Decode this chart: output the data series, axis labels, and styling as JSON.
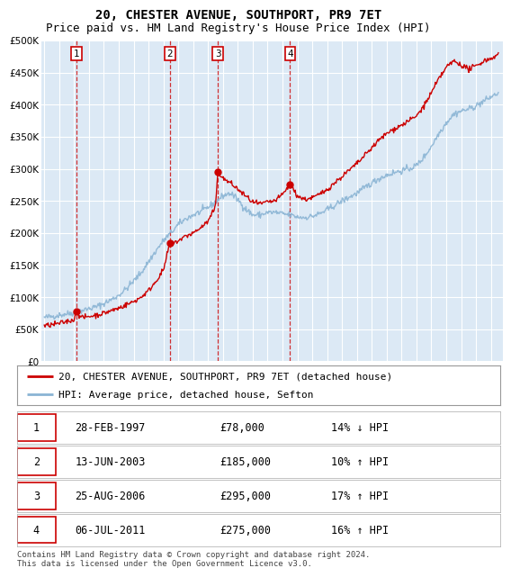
{
  "title": "20, CHESTER AVENUE, SOUTHPORT, PR9 7ET",
  "subtitle": "Price paid vs. HM Land Registry's House Price Index (HPI)",
  "ylabel_ticks": [
    "£0",
    "£50K",
    "£100K",
    "£150K",
    "£200K",
    "£250K",
    "£300K",
    "£350K",
    "£400K",
    "£450K",
    "£500K"
  ],
  "ytick_values": [
    0,
    50000,
    100000,
    150000,
    200000,
    250000,
    300000,
    350000,
    400000,
    450000,
    500000
  ],
  "ylim": [
    0,
    500000
  ],
  "xlim_start": 1994.8,
  "xlim_end": 2025.8,
  "plot_bg_color": "#dce9f5",
  "fig_bg_color": "#ffffff",
  "grid_color": "#ffffff",
  "sale_color": "#cc0000",
  "hpi_color": "#8ab4d4",
  "sale_dates": [
    1997.16,
    2003.45,
    2006.65,
    2011.51
  ],
  "sale_prices": [
    78000,
    185000,
    295000,
    275000
  ],
  "sale_labels": [
    "1",
    "2",
    "3",
    "4"
  ],
  "legend_sale_label": "20, CHESTER AVENUE, SOUTHPORT, PR9 7ET (detached house)",
  "legend_hpi_label": "HPI: Average price, detached house, Sefton",
  "table_rows": [
    [
      "1",
      "28-FEB-1997",
      "£78,000",
      "14% ↓ HPI"
    ],
    [
      "2",
      "13-JUN-2003",
      "£185,000",
      "10% ↑ HPI"
    ],
    [
      "3",
      "25-AUG-2006",
      "£295,000",
      "17% ↑ HPI"
    ],
    [
      "4",
      "06-JUL-2011",
      "£275,000",
      "16% ↑ HPI"
    ]
  ],
  "footnote": "Contains HM Land Registry data © Crown copyright and database right 2024.\nThis data is licensed under the Open Government Licence v3.0.",
  "title_fontsize": 10,
  "subtitle_fontsize": 9,
  "tick_fontsize": 7.5,
  "legend_fontsize": 8,
  "table_fontsize": 8.5,
  "footnote_fontsize": 6.5,
  "hpi_points": [
    [
      1995.0,
      68000
    ],
    [
      1995.5,
      70000
    ],
    [
      1996.0,
      72000
    ],
    [
      1996.5,
      74000
    ],
    [
      1997.0,
      76000
    ],
    [
      1997.5,
      79000
    ],
    [
      1998.0,
      82000
    ],
    [
      1998.5,
      85000
    ],
    [
      1999.0,
      90000
    ],
    [
      1999.5,
      96000
    ],
    [
      2000.0,
      103000
    ],
    [
      2000.5,
      113000
    ],
    [
      2001.0,
      125000
    ],
    [
      2001.5,
      138000
    ],
    [
      2002.0,
      155000
    ],
    [
      2002.5,
      172000
    ],
    [
      2003.0,
      188000
    ],
    [
      2003.5,
      200000
    ],
    [
      2004.0,
      213000
    ],
    [
      2004.5,
      222000
    ],
    [
      2005.0,
      228000
    ],
    [
      2005.5,
      233000
    ],
    [
      2006.0,
      240000
    ],
    [
      2006.5,
      248000
    ],
    [
      2007.0,
      258000
    ],
    [
      2007.5,
      262000
    ],
    [
      2008.0,
      252000
    ],
    [
      2008.5,
      238000
    ],
    [
      2009.0,
      228000
    ],
    [
      2009.5,
      228000
    ],
    [
      2010.0,
      232000
    ],
    [
      2010.5,
      232000
    ],
    [
      2011.0,
      230000
    ],
    [
      2011.5,
      228000
    ],
    [
      2012.0,
      225000
    ],
    [
      2012.5,
      224000
    ],
    [
      2013.0,
      226000
    ],
    [
      2013.5,
      230000
    ],
    [
      2014.0,
      236000
    ],
    [
      2014.5,
      243000
    ],
    [
      2015.0,
      250000
    ],
    [
      2015.5,
      256000
    ],
    [
      2016.0,
      262000
    ],
    [
      2016.5,
      270000
    ],
    [
      2017.0,
      278000
    ],
    [
      2017.5,
      285000
    ],
    [
      2018.0,
      290000
    ],
    [
      2018.5,
      294000
    ],
    [
      2019.0,
      297000
    ],
    [
      2019.5,
      300000
    ],
    [
      2020.0,
      305000
    ],
    [
      2020.5,
      318000
    ],
    [
      2021.0,
      335000
    ],
    [
      2021.5,
      355000
    ],
    [
      2022.0,
      372000
    ],
    [
      2022.5,
      385000
    ],
    [
      2023.0,
      390000
    ],
    [
      2023.5,
      393000
    ],
    [
      2024.0,
      398000
    ],
    [
      2024.5,
      405000
    ],
    [
      2025.0,
      412000
    ],
    [
      2025.5,
      418000
    ]
  ],
  "sale_line_points": [
    [
      1995.0,
      55000
    ],
    [
      1995.5,
      57000
    ],
    [
      1996.0,
      59000
    ],
    [
      1996.5,
      62000
    ],
    [
      1997.0,
      65000
    ],
    [
      1997.16,
      78000
    ],
    [
      1997.5,
      68000
    ],
    [
      1998.0,
      70000
    ],
    [
      1998.5,
      72000
    ],
    [
      1999.0,
      75000
    ],
    [
      1999.5,
      79000
    ],
    [
      2000.0,
      83000
    ],
    [
      2000.5,
      88000
    ],
    [
      2001.0,
      93000
    ],
    [
      2001.5,
      100000
    ],
    [
      2002.0,
      110000
    ],
    [
      2002.5,
      125000
    ],
    [
      2003.0,
      142000
    ],
    [
      2003.45,
      185000
    ],
    [
      2003.5,
      182000
    ],
    [
      2004.0,
      188000
    ],
    [
      2004.5,
      195000
    ],
    [
      2005.0,
      200000
    ],
    [
      2005.5,
      208000
    ],
    [
      2006.0,
      218000
    ],
    [
      2006.5,
      240000
    ],
    [
      2006.65,
      295000
    ],
    [
      2007.0,
      285000
    ],
    [
      2007.5,
      278000
    ],
    [
      2008.0,
      268000
    ],
    [
      2008.5,
      258000
    ],
    [
      2009.0,
      248000
    ],
    [
      2009.5,
      245000
    ],
    [
      2010.0,
      248000
    ],
    [
      2010.5,
      250000
    ],
    [
      2011.0,
      260000
    ],
    [
      2011.51,
      275000
    ],
    [
      2012.0,
      258000
    ],
    [
      2012.5,
      252000
    ],
    [
      2013.0,
      255000
    ],
    [
      2013.5,
      260000
    ],
    [
      2014.0,
      268000
    ],
    [
      2014.5,
      278000
    ],
    [
      2015.0,
      288000
    ],
    [
      2015.5,
      298000
    ],
    [
      2016.0,
      308000
    ],
    [
      2016.5,
      320000
    ],
    [
      2017.0,
      333000
    ],
    [
      2017.5,
      345000
    ],
    [
      2018.0,
      355000
    ],
    [
      2018.5,
      362000
    ],
    [
      2019.0,
      368000
    ],
    [
      2019.5,
      375000
    ],
    [
      2020.0,
      382000
    ],
    [
      2020.5,
      398000
    ],
    [
      2021.0,
      418000
    ],
    [
      2021.5,
      440000
    ],
    [
      2022.0,
      458000
    ],
    [
      2022.5,
      468000
    ],
    [
      2023.0,
      462000
    ],
    [
      2023.5,
      455000
    ],
    [
      2024.0,
      460000
    ],
    [
      2024.5,
      468000
    ],
    [
      2025.0,
      472000
    ],
    [
      2025.5,
      478000
    ]
  ]
}
